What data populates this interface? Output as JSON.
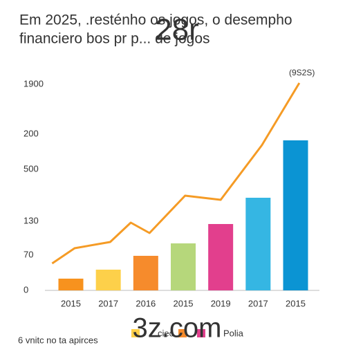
{
  "chart_data": {
    "type": "bar",
    "title": [
      "Em 2025, .resténho os jogos, o desempho",
      "financiero bos pr p... de jogos"
    ],
    "watermark": "28r",
    "footer_watermark": "3z.com",
    "footnote": "6 vnitc no ta apirces",
    "annotation": "(9S2S)",
    "categories": [
      "2015",
      "2017",
      "2016",
      "2015",
      "2019",
      "2017",
      "2015"
    ],
    "values": [
      17,
      30,
      50,
      68,
      96,
      134,
      217
    ],
    "colors": [
      "#f7921e",
      "#fdd04a",
      "#f68b2c",
      "#b6d77b",
      "#e23f8d",
      "#35b6e3",
      "#0b94d3"
    ],
    "line": {
      "color": "#f59b25",
      "x": [
        -0.5,
        0.1,
        1.05,
        1.6,
        2.1,
        3.05,
        4.0,
        5.1,
        6.1
      ],
      "values": [
        39,
        61,
        70,
        98,
        83,
        137,
        131,
        210,
        300
      ]
    },
    "legend": [
      {
        "name": "ciec",
        "color": "#fdd04a"
      },
      {
        "name": "Polia",
        "color": "#e23f8d"
      }
    ],
    "xlim": [
      -0.6,
      6.6
    ],
    "ylim": [
      0,
      310
    ],
    "yticks": [
      0,
      {
        "value": 51,
        "label": "70"
      },
      {
        "value": 100,
        "label": "130"
      },
      {
        "value": 175,
        "label": "500"
      },
      {
        "value": 226,
        "label": "200"
      },
      {
        "value": 298,
        "label": "1900"
      }
    ]
  }
}
